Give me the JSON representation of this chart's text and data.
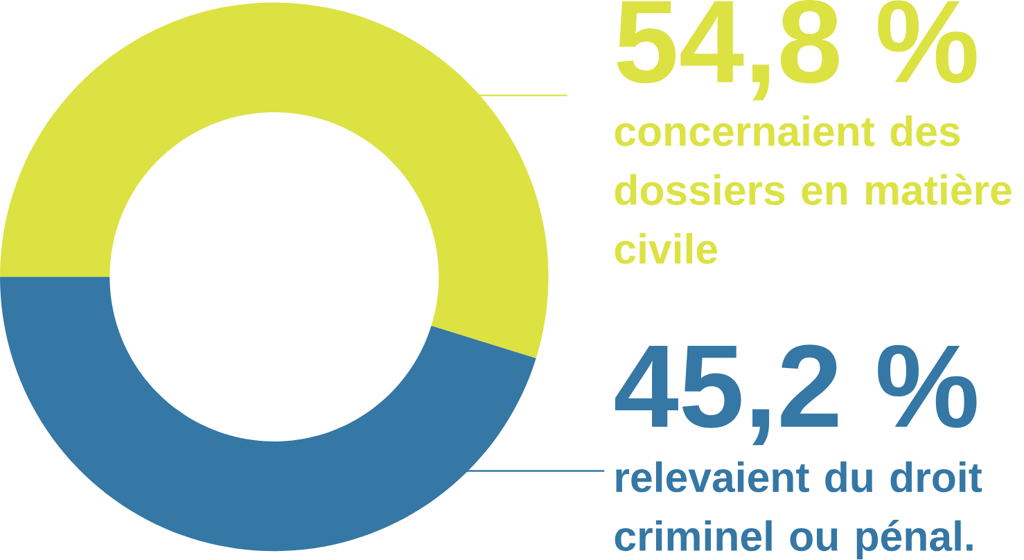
{
  "chart_data": {
    "type": "donut",
    "categories": [
      "concernaient des dossiers en matière civile",
      "relevaient du droit criminel ou pénal."
    ],
    "values": [
      54.8,
      45.2
    ],
    "value_labels": [
      "54,8 %",
      "45,2 %"
    ],
    "colors": [
      "#dce242",
      "#3577a5"
    ]
  }
}
